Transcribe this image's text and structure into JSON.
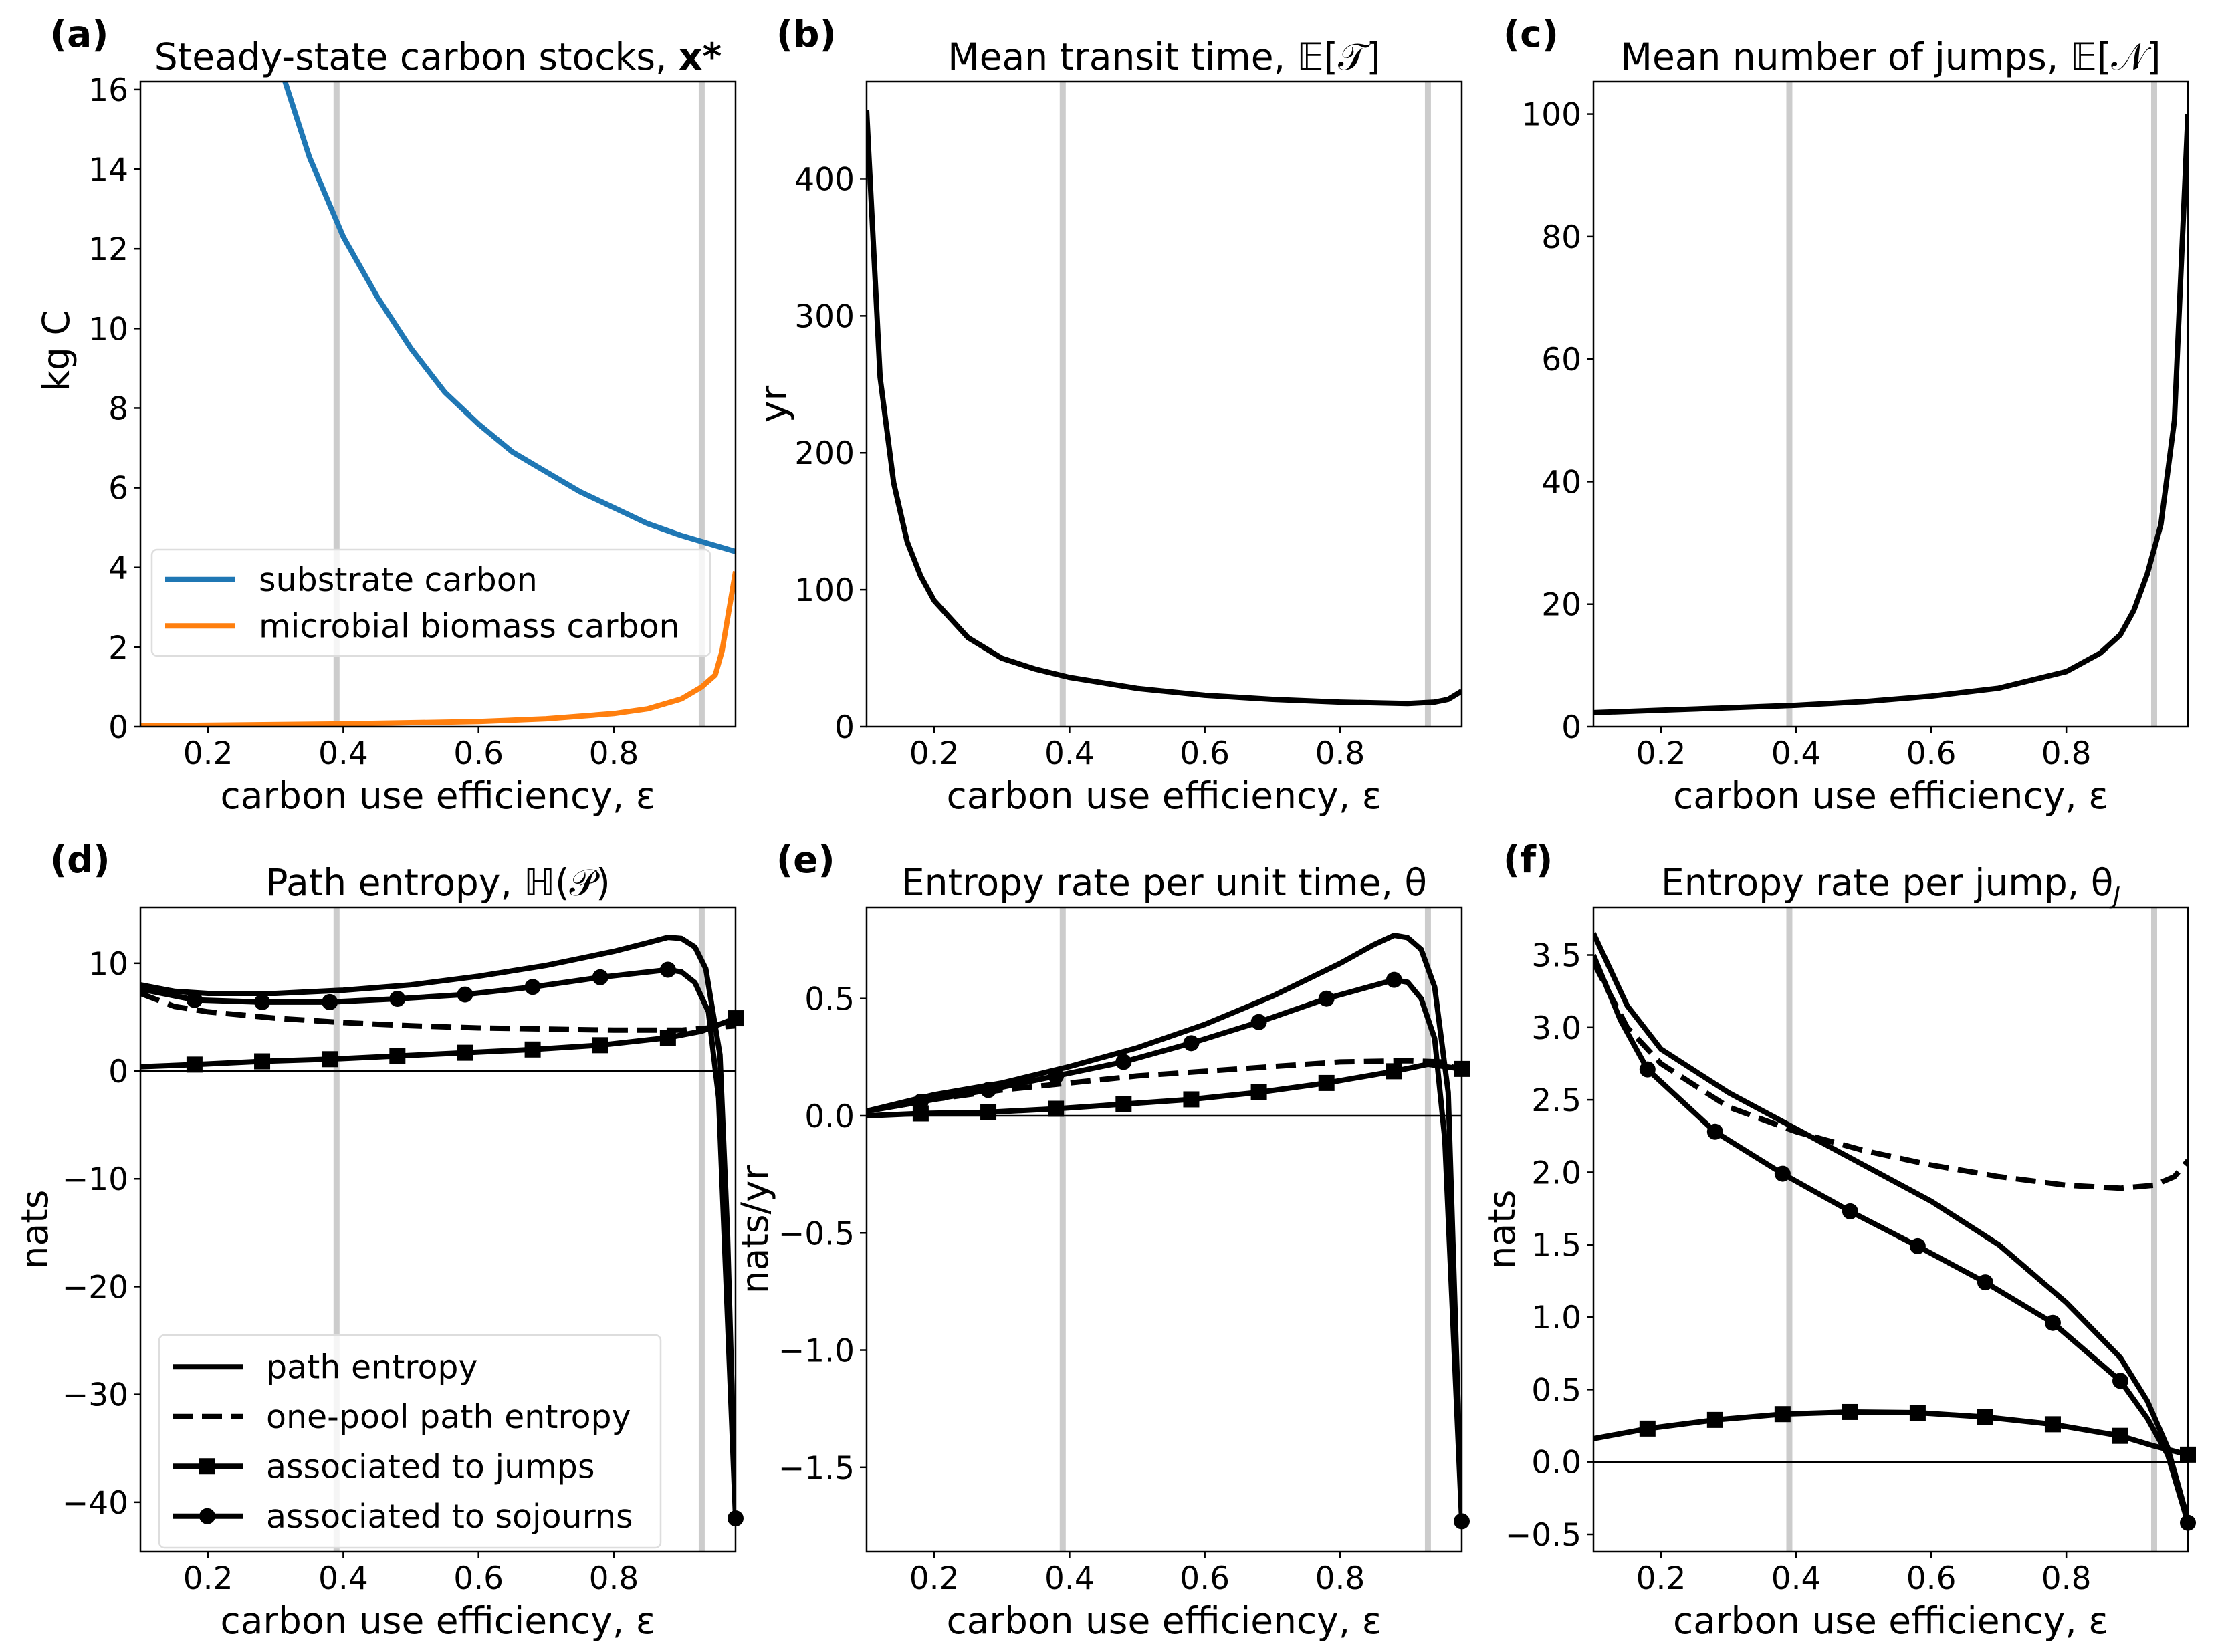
{
  "chart_data": [
    {
      "type": "line",
      "panel_label": "(a)",
      "title": "Steady-state carbon stocks, ",
      "title_bold": "x*",
      "xlabel": "carbon use efficiency, ε",
      "ylabel": "kg C",
      "xlim": [
        0.1,
        0.98
      ],
      "ylim": [
        0,
        16.2
      ],
      "xticks": [
        0.2,
        0.4,
        0.6,
        0.8
      ],
      "xtick_labels": [
        "0.2",
        "0.4",
        "0.6",
        "0.8"
      ],
      "yticks": [
        0,
        2,
        4,
        6,
        8,
        10,
        12,
        14,
        16
      ],
      "ytick_labels": [
        "0",
        "2",
        "4",
        "6",
        "8",
        "10",
        "12",
        "14",
        "16"
      ],
      "vlines": [
        0.39,
        0.93
      ],
      "legend": "lower-left",
      "series": [
        {
          "name": "substrate carbon",
          "color": "#1f77b4",
          "style": "solid",
          "marker": "none",
          "x": [
            0.31,
            0.35,
            0.4,
            0.45,
            0.5,
            0.55,
            0.6,
            0.65,
            0.7,
            0.75,
            0.8,
            0.85,
            0.9,
            0.95,
            0.98
          ],
          "y": [
            16.4,
            14.3,
            12.3,
            10.8,
            9.5,
            8.4,
            7.6,
            6.9,
            6.4,
            5.9,
            5.5,
            5.1,
            4.8,
            4.55,
            4.4
          ]
        },
        {
          "name": "microbial biomass carbon",
          "color": "#ff7f0e",
          "style": "solid",
          "marker": "none",
          "x": [
            0.1,
            0.4,
            0.6,
            0.7,
            0.8,
            0.85,
            0.9,
            0.93,
            0.95,
            0.96,
            0.98
          ],
          "y": [
            0.02,
            0.07,
            0.13,
            0.2,
            0.33,
            0.45,
            0.7,
            1.0,
            1.3,
            1.9,
            3.9
          ]
        }
      ]
    },
    {
      "type": "line",
      "panel_label": "(b)",
      "title": "Mean transit time, 𝔼[𝒯]",
      "xlabel": "carbon use efficiency, ε",
      "ylabel": "yr",
      "xlim": [
        0.1,
        0.98
      ],
      "ylim": [
        0,
        471
      ],
      "xticks": [
        0.2,
        0.4,
        0.6,
        0.8
      ],
      "xtick_labels": [
        "0.2",
        "0.4",
        "0.6",
        "0.8"
      ],
      "yticks": [
        0,
        100,
        200,
        300,
        400
      ],
      "ytick_labels": [
        "0",
        "100",
        "200",
        "300",
        "400"
      ],
      "vlines": [
        0.39,
        0.93
      ],
      "series": [
        {
          "name": "mean transit time",
          "color": "#000000",
          "style": "solid",
          "marker": "none",
          "x": [
            0.1,
            0.12,
            0.14,
            0.16,
            0.18,
            0.2,
            0.25,
            0.3,
            0.35,
            0.4,
            0.5,
            0.6,
            0.7,
            0.8,
            0.9,
            0.94,
            0.96,
            0.98
          ],
          "y": [
            450,
            255,
            178,
            135,
            110,
            92,
            65,
            50,
            42,
            36,
            28,
            23,
            20,
            18,
            17,
            18,
            20,
            26
          ]
        }
      ]
    },
    {
      "type": "line",
      "panel_label": "(c)",
      "title": "Mean number of jumps, 𝔼[𝒩]",
      "xlabel": "carbon use efficiency, ε",
      "ylabel": "",
      "xlim": [
        0.1,
        0.98
      ],
      "ylim": [
        0,
        105.3
      ],
      "xticks": [
        0.2,
        0.4,
        0.6,
        0.8
      ],
      "xtick_labels": [
        "0.2",
        "0.4",
        "0.6",
        "0.8"
      ],
      "yticks": [
        0,
        20,
        40,
        60,
        80,
        100
      ],
      "ytick_labels": [
        "0",
        "20",
        "40",
        "60",
        "80",
        "100"
      ],
      "vlines": [
        0.39,
        0.93
      ],
      "series": [
        {
          "name": "mean number of jumps",
          "color": "#000000",
          "style": "solid",
          "marker": "none",
          "x": [
            0.1,
            0.2,
            0.3,
            0.4,
            0.5,
            0.6,
            0.7,
            0.8,
            0.85,
            0.88,
            0.9,
            0.92,
            0.94,
            0.96,
            0.98
          ],
          "y": [
            2.3,
            2.7,
            3.1,
            3.5,
            4.1,
            5.0,
            6.3,
            9.0,
            12,
            15,
            19,
            25,
            33,
            50,
            100
          ]
        }
      ]
    },
    {
      "type": "line",
      "panel_label": "(d)",
      "title": "Path entropy, ℍ(𝒫)",
      "xlabel": "carbon use efficiency, ε",
      "ylabel": "nats",
      "xlim": [
        0.1,
        0.98
      ],
      "ylim": [
        -44.6,
        15.2
      ],
      "xticks": [
        0.2,
        0.4,
        0.6,
        0.8
      ],
      "xtick_labels": [
        "0.2",
        "0.4",
        "0.6",
        "0.8"
      ],
      "yticks": [
        -40,
        -30,
        -20,
        -10,
        0,
        10
      ],
      "ytick_labels": [
        "−40",
        "−30",
        "−20",
        "−10",
        "0",
        "10"
      ],
      "vlines": [
        0.39,
        0.93
      ],
      "hline": 0,
      "legend": "lower-left",
      "series": [
        {
          "name": "path entropy",
          "color": "#000000",
          "style": "solid",
          "marker": "none",
          "x": [
            0.1,
            0.15,
            0.2,
            0.3,
            0.4,
            0.5,
            0.6,
            0.7,
            0.8,
            0.85,
            0.88,
            0.9,
            0.92,
            0.936,
            0.957,
            0.968,
            0.98
          ],
          "y": [
            8.0,
            7.4,
            7.2,
            7.2,
            7.5,
            8.0,
            8.8,
            9.8,
            11.1,
            11.9,
            12.4,
            12.3,
            11.5,
            9.5,
            1.5,
            -15,
            -41
          ]
        },
        {
          "name": "one-pool path entropy",
          "color": "#000000",
          "style": "dashed",
          "marker": "none",
          "x": [
            0.1,
            0.15,
            0.2,
            0.3,
            0.4,
            0.5,
            0.6,
            0.7,
            0.8,
            0.9,
            0.98
          ],
          "y": [
            7.2,
            6.0,
            5.5,
            4.9,
            4.5,
            4.2,
            4.0,
            3.9,
            3.8,
            3.8,
            4.2
          ]
        },
        {
          "name": "associated to jumps",
          "color": "#000000",
          "style": "solid",
          "marker": "square",
          "x": [
            0.1,
            0.18,
            0.28,
            0.38,
            0.48,
            0.58,
            0.68,
            0.78,
            0.88,
            0.93,
            0.98
          ],
          "y": [
            0.4,
            0.6,
            0.9,
            1.1,
            1.4,
            1.7,
            2.0,
            2.4,
            3.1,
            3.7,
            4.9
          ],
          "marker_x": [
            0.18,
            0.28,
            0.38,
            0.48,
            0.58,
            0.68,
            0.78,
            0.88,
            0.98
          ]
        },
        {
          "name": "associated to sojourns",
          "color": "#000000",
          "style": "solid",
          "marker": "circle",
          "x": [
            0.1,
            0.18,
            0.28,
            0.38,
            0.48,
            0.58,
            0.68,
            0.78,
            0.88,
            0.9,
            0.92,
            0.94,
            0.955,
            0.98
          ],
          "y": [
            7.6,
            6.6,
            6.4,
            6.4,
            6.7,
            7.1,
            7.8,
            8.7,
            9.4,
            9.2,
            8.2,
            5.5,
            -2.5,
            -41.5
          ],
          "marker_x": [
            0.18,
            0.28,
            0.38,
            0.48,
            0.58,
            0.68,
            0.78,
            0.88,
            0.98
          ]
        }
      ]
    },
    {
      "type": "line",
      "panel_label": "(e)",
      "title": "Entropy rate per unit time, θ",
      "xlabel": "carbon use efficiency, ε",
      "ylabel": "nats/yr",
      "xlim": [
        0.1,
        0.98
      ],
      "ylim": [
        -1.86,
        0.89
      ],
      "xticks": [
        0.2,
        0.4,
        0.6,
        0.8
      ],
      "xtick_labels": [
        "0.2",
        "0.4",
        "0.6",
        "0.8"
      ],
      "yticks": [
        -1.5,
        -1.0,
        -0.5,
        0.0,
        0.5
      ],
      "ytick_labels": [
        "−1.5",
        "−1.0",
        "−0.5",
        "0.0",
        "0.5"
      ],
      "vlines": [
        0.39,
        0.93
      ],
      "hline": 0,
      "series": [
        {
          "name": "path entropy",
          "color": "#000000",
          "style": "solid",
          "marker": "none",
          "x": [
            0.1,
            0.2,
            0.3,
            0.4,
            0.5,
            0.6,
            0.7,
            0.8,
            0.85,
            0.88,
            0.9,
            0.92,
            0.94,
            0.96,
            0.98
          ],
          "y": [
            0.02,
            0.09,
            0.14,
            0.21,
            0.29,
            0.39,
            0.51,
            0.65,
            0.73,
            0.77,
            0.76,
            0.71,
            0.55,
            0.1,
            -1.73
          ]
        },
        {
          "name": "one-pool path entropy",
          "color": "#000000",
          "style": "dashed",
          "marker": "none",
          "x": [
            0.1,
            0.2,
            0.3,
            0.4,
            0.5,
            0.6,
            0.7,
            0.8,
            0.9,
            0.95,
            0.98
          ],
          "y": [
            0.02,
            0.07,
            0.11,
            0.14,
            0.17,
            0.19,
            0.21,
            0.23,
            0.235,
            0.23,
            0.19
          ]
        },
        {
          "name": "associated to jumps",
          "color": "#000000",
          "style": "solid",
          "marker": "square",
          "x": [
            0.1,
            0.18,
            0.28,
            0.38,
            0.48,
            0.58,
            0.68,
            0.78,
            0.88,
            0.93,
            0.98
          ],
          "y": [
            0.0,
            0.01,
            0.015,
            0.03,
            0.05,
            0.07,
            0.1,
            0.14,
            0.19,
            0.22,
            0.2
          ],
          "marker_x": [
            0.18,
            0.28,
            0.38,
            0.48,
            0.58,
            0.68,
            0.78,
            0.88,
            0.98
          ]
        },
        {
          "name": "associated to sojourns",
          "color": "#000000",
          "style": "solid",
          "marker": "circle",
          "x": [
            0.1,
            0.18,
            0.28,
            0.38,
            0.48,
            0.58,
            0.68,
            0.78,
            0.88,
            0.9,
            0.92,
            0.94,
            0.955,
            0.98
          ],
          "y": [
            0.02,
            0.06,
            0.11,
            0.17,
            0.23,
            0.31,
            0.4,
            0.5,
            0.58,
            0.57,
            0.5,
            0.33,
            -0.1,
            -1.73
          ],
          "marker_x": [
            0.18,
            0.28,
            0.38,
            0.48,
            0.58,
            0.68,
            0.78,
            0.88,
            0.98
          ]
        }
      ]
    },
    {
      "type": "line",
      "panel_label": "(f)",
      "title": "Entropy rate per jump, θ",
      "title_sub": "J",
      "xlabel": "carbon use efficiency, ε",
      "ylabel": "nats",
      "xlim": [
        0.1,
        0.98
      ],
      "ylim": [
        -0.62,
        3.83
      ],
      "xticks": [
        0.2,
        0.4,
        0.6,
        0.8
      ],
      "xtick_labels": [
        "0.2",
        "0.4",
        "0.6",
        "0.8"
      ],
      "yticks": [
        -0.5,
        0.0,
        0.5,
        1.0,
        1.5,
        2.0,
        2.5,
        3.0,
        3.5
      ],
      "ytick_labels": [
        "−0.5",
        "0.0",
        "0.5",
        "1.0",
        "1.5",
        "2.0",
        "2.5",
        "3.0",
        "3.5"
      ],
      "vlines": [
        0.39,
        0.93
      ],
      "hline": 0,
      "series": [
        {
          "name": "path entropy",
          "color": "#000000",
          "style": "solid",
          "marker": "none",
          "x": [
            0.1,
            0.15,
            0.2,
            0.3,
            0.4,
            0.5,
            0.6,
            0.7,
            0.8,
            0.88,
            0.92,
            0.95,
            0.98
          ],
          "y": [
            3.65,
            3.15,
            2.85,
            2.55,
            2.3,
            2.05,
            1.8,
            1.5,
            1.1,
            0.72,
            0.42,
            0.1,
            -0.4
          ]
        },
        {
          "name": "one-pool path entropy",
          "color": "#000000",
          "style": "dashed",
          "marker": "none",
          "x": [
            0.1,
            0.15,
            0.2,
            0.3,
            0.4,
            0.5,
            0.6,
            0.7,
            0.8,
            0.88,
            0.93,
            0.96,
            0.98
          ],
          "y": [
            3.45,
            3.0,
            2.75,
            2.45,
            2.28,
            2.15,
            2.05,
            1.97,
            1.91,
            1.89,
            1.91,
            1.97,
            2.08
          ]
        },
        {
          "name": "associated to jumps",
          "color": "#000000",
          "style": "solid",
          "marker": "square",
          "x": [
            0.1,
            0.18,
            0.28,
            0.38,
            0.48,
            0.58,
            0.68,
            0.78,
            0.88,
            0.93,
            0.98
          ],
          "y": [
            0.16,
            0.23,
            0.29,
            0.33,
            0.345,
            0.34,
            0.31,
            0.26,
            0.18,
            0.11,
            0.05
          ],
          "marker_x": [
            0.18,
            0.28,
            0.38,
            0.48,
            0.58,
            0.68,
            0.78,
            0.88,
            0.98
          ]
        },
        {
          "name": "associated to sojourns",
          "color": "#000000",
          "style": "solid",
          "marker": "circle",
          "x": [
            0.1,
            0.14,
            0.18,
            0.28,
            0.38,
            0.48,
            0.58,
            0.68,
            0.78,
            0.88,
            0.92,
            0.95,
            0.98
          ],
          "y": [
            3.5,
            3.05,
            2.71,
            2.28,
            1.99,
            1.73,
            1.49,
            1.24,
            0.96,
            0.56,
            0.3,
            0.05,
            -0.42
          ],
          "marker_x": [
            0.18,
            0.28,
            0.38,
            0.48,
            0.58,
            0.68,
            0.78,
            0.88,
            0.98
          ]
        }
      ]
    }
  ]
}
